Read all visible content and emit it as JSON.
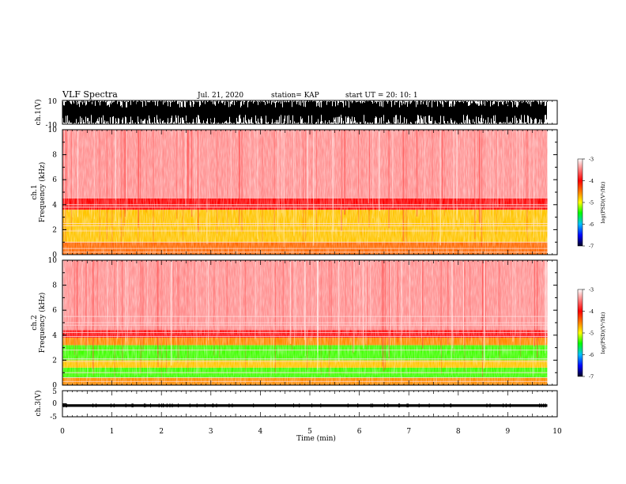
{
  "header": {
    "title": "VLF Spectra",
    "date": "Jul. 21, 2020",
    "station": "station= KAP",
    "start_ut": "start UT =  20: 10: 1"
  },
  "chart_data": [
    {
      "type": "line",
      "panel": "waveform-ch1",
      "ylabel": "ch.1(V)",
      "ylim": [
        -10,
        10
      ],
      "yticks": [
        "10",
        "-10"
      ],
      "xlim": [
        0,
        10
      ],
      "data_end_min": 9.8,
      "description_values": "dense saturated waveform spanning -10 to 10 V"
    },
    {
      "type": "heatmap",
      "panel": "spectrogram-ch1",
      "ylabel": "ch.1\nFrequency (kHz)",
      "ylim": [
        0,
        10
      ],
      "yticks": [
        "0",
        "2",
        "4",
        "6",
        "8",
        "10"
      ],
      "xlim": [
        0,
        10
      ],
      "data_end_min": 9.8,
      "colorbar": {
        "label": "log(PSD)(V²/Hz)",
        "range": [
          -7,
          -3
        ],
        "ticks": [
          "-3",
          "-4",
          "-5",
          "-6",
          "-7"
        ]
      },
      "bands_khz": [
        {
          "from": 0,
          "to": 1.0,
          "level": -4.3
        },
        {
          "from": 1.0,
          "to": 2.0,
          "level": -4.6
        },
        {
          "from": 2.0,
          "to": 3.6,
          "level": -4.6
        },
        {
          "from": 3.6,
          "to": 4.5,
          "level": -4.0
        },
        {
          "from": 4.5,
          "to": 10,
          "level": -3.3
        }
      ],
      "horizontal_lines_khz": [
        0.2,
        0.5,
        1.0,
        1.9,
        2.3,
        2.5,
        3.8,
        4.0
      ]
    },
    {
      "type": "heatmap",
      "panel": "spectrogram-ch2",
      "ylabel": "ch.2\nFrequency (kHz)",
      "ylim": [
        0,
        10
      ],
      "yticks": [
        "0",
        "2",
        "4",
        "6",
        "8",
        "10"
      ],
      "xlim": [
        0,
        10
      ],
      "data_end_min": 9.8,
      "colorbar": {
        "label": "log(PSD)(V²/Hz)",
        "range": [
          -7,
          -3
        ],
        "ticks": [
          "-3",
          "-4",
          "-5",
          "-6",
          "-7"
        ]
      },
      "bands_khz": [
        {
          "from": 0,
          "to": 0.6,
          "level": -4.4
        },
        {
          "from": 0.6,
          "to": 1.4,
          "level": -5.1
        },
        {
          "from": 1.4,
          "to": 2.0,
          "level": -4.6
        },
        {
          "from": 2.0,
          "to": 3.2,
          "level": -5.1
        },
        {
          "from": 3.2,
          "to": 3.8,
          "level": -4.4
        },
        {
          "from": 3.8,
          "to": 4.4,
          "level": -3.9
        },
        {
          "from": 4.4,
          "to": 10,
          "level": -3.3
        }
      ],
      "horizontal_lines_khz": [
        0.3,
        0.6,
        1.0,
        1.9,
        2.1,
        2.8,
        3.9,
        4.2,
        4.8,
        5.0,
        5.5
      ]
    },
    {
      "type": "line",
      "panel": "waveform-ch3",
      "ylabel": "ch.3(V)",
      "xlabel": "Time (min)",
      "ylim": [
        -5,
        5
      ],
      "yticks": [
        "5",
        "0",
        "-5"
      ],
      "xlim": [
        0,
        10
      ],
      "xticks": [
        "0",
        "1",
        "2",
        "3",
        "4",
        "5",
        "6",
        "7",
        "8",
        "9",
        "10"
      ],
      "data_end_min": 9.8,
      "band_v": [
        -1.2,
        -0.2
      ]
    }
  ],
  "colors": {
    "c_-3": "#ffffff",
    "c_-3.3": "#ff6060",
    "c_-4": "#ff0000",
    "c_-4.5": "#ffff00",
    "c_-5": "#00ff00",
    "c_-6": "#0080ff",
    "c_-7": "#000030"
  }
}
